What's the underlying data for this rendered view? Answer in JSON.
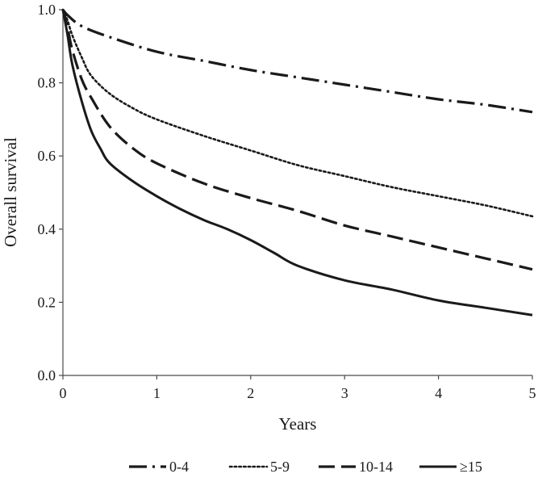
{
  "chart_data": {
    "type": "line",
    "xlabel": "Years",
    "ylabel": "Overall survival",
    "xlim": [
      0,
      5
    ],
    "ylim": [
      0,
      1.0
    ],
    "x_ticks": [
      "0",
      "1",
      "2",
      "3",
      "4",
      "5"
    ],
    "y_ticks": [
      "0.0",
      "0.2",
      "0.4",
      "0.6",
      "0.8",
      "1.0"
    ],
    "grid": false,
    "legend_position": "bottom",
    "line_color": "#1a1a1a",
    "series": [
      {
        "name": "0-4",
        "line_style": "dash-dot",
        "x": [
          0,
          0.05,
          0.2,
          0.5,
          1,
          1.5,
          2,
          2.5,
          3,
          3.5,
          4,
          4.5,
          5
        ],
        "y": [
          1.0,
          0.985,
          0.955,
          0.925,
          0.885,
          0.86,
          0.835,
          0.815,
          0.795,
          0.775,
          0.755,
          0.74,
          0.72
        ]
      },
      {
        "name": "5-9",
        "line_style": "dotted",
        "x": [
          0,
          0.05,
          0.1,
          0.2,
          0.3,
          0.5,
          0.75,
          1,
          1.5,
          2,
          2.5,
          3,
          3.5,
          4,
          4.5,
          5
        ],
        "y": [
          1.0,
          0.97,
          0.93,
          0.87,
          0.82,
          0.77,
          0.73,
          0.7,
          0.655,
          0.615,
          0.575,
          0.545,
          0.515,
          0.49,
          0.465,
          0.435
        ]
      },
      {
        "name": "10-14",
        "line_style": "dashed",
        "x": [
          0,
          0.05,
          0.1,
          0.2,
          0.3,
          0.5,
          0.75,
          1,
          1.5,
          2,
          2.5,
          3,
          3.5,
          4,
          4.5,
          5
        ],
        "y": [
          1.0,
          0.95,
          0.89,
          0.81,
          0.76,
          0.68,
          0.62,
          0.58,
          0.525,
          0.485,
          0.45,
          0.41,
          0.38,
          0.35,
          0.32,
          0.29
        ]
      },
      {
        "name": "≥15",
        "line_style": "solid",
        "x": [
          0,
          0.05,
          0.1,
          0.2,
          0.3,
          0.4,
          0.5,
          0.75,
          1,
          1.25,
          1.5,
          1.75,
          2,
          2.25,
          2.5,
          3,
          3.5,
          4,
          4.5,
          5
        ],
        "y": [
          1.0,
          0.93,
          0.85,
          0.75,
          0.67,
          0.62,
          0.58,
          0.53,
          0.49,
          0.455,
          0.425,
          0.4,
          0.37,
          0.335,
          0.3,
          0.26,
          0.235,
          0.205,
          0.185,
          0.165
        ]
      }
    ]
  }
}
